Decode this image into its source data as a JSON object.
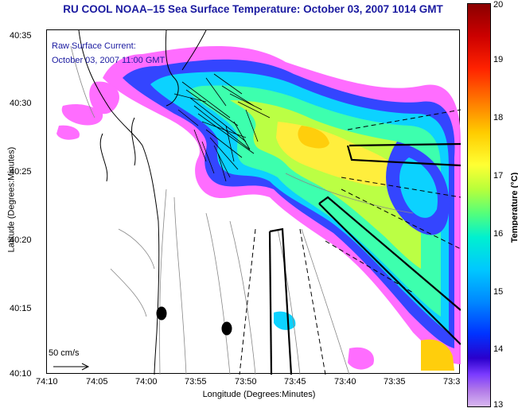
{
  "title": "RU COOL  NOAA–15  Sea Surface Temperature:  October 03, 2007 1014 GMT",
  "annotation": {
    "line1": "Raw Surface Current:",
    "line2": "October 03, 2007 11:00 GMT"
  },
  "scale_label": "50 cm/s",
  "axes": {
    "xlabel": "Longitude (Degrees:Minutes)",
    "ylabel": "Latitude (Degrees:Minutes)",
    "xticks": [
      "74:10",
      "74:05",
      "74:00",
      "73:55",
      "73:50",
      "73:45",
      "73:40",
      "73:35",
      "73:3"
    ],
    "yticks": [
      "40:35",
      "40:30",
      "40:25",
      "40:20",
      "40:15",
      "40:10"
    ]
  },
  "colorbar": {
    "label": "Temperature (°C)",
    "ticks": [
      "20",
      "19",
      "18",
      "17",
      "16",
      "15",
      "14",
      "13"
    ],
    "range": [
      13,
      20
    ]
  },
  "colors": {
    "title": "#1a1aa0",
    "coast": "#000000",
    "contour": "#888888"
  }
}
